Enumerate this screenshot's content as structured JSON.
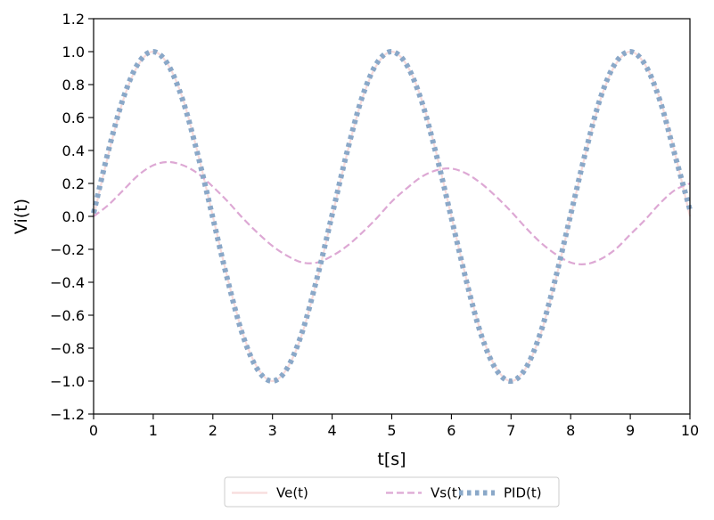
{
  "chart_data": {
    "type": "line",
    "xlabel": "t[s]",
    "ylabel": "Vi(t)",
    "xlim": [
      0,
      10
    ],
    "ylim": [
      -1.2,
      1.2
    ],
    "xticks": [
      "0",
      "1",
      "2",
      "3",
      "4",
      "5",
      "6",
      "7",
      "8",
      "9",
      "10"
    ],
    "yticks": [
      "1.2",
      "1.0",
      "0.8",
      "0.6",
      "0.4",
      "0.2",
      "0.0",
      "−0.2",
      "−0.4",
      "−0.6",
      "−0.8",
      "−1.0",
      "−1.2"
    ],
    "grid": false,
    "legend_position": "bottom-center",
    "x": [
      0,
      0.25,
      0.5,
      0.75,
      1,
      1.25,
      1.5,
      1.75,
      2,
      2.25,
      2.5,
      2.75,
      3,
      3.25,
      3.5,
      3.75,
      4,
      4.25,
      4.5,
      4.75,
      5,
      5.25,
      5.5,
      5.75,
      6,
      6.25,
      6.5,
      6.75,
      7,
      7.25,
      7.5,
      7.75,
      8,
      8.25,
      8.5,
      8.75,
      9,
      9.25,
      9.5,
      9.75,
      10
    ],
    "series": [
      {
        "name": "Ve(t)",
        "color": "#f8dcdc",
        "style": "solid",
        "values": [
          0,
          0.38,
          0.71,
          0.92,
          1.0,
          0.92,
          0.71,
          0.38,
          0,
          -0.38,
          -0.71,
          -0.92,
          -1.0,
          -0.92,
          -0.71,
          -0.38,
          0,
          0.38,
          0.71,
          0.92,
          1.0,
          0.92,
          0.71,
          0.38,
          0,
          -0.38,
          -0.71,
          -0.92,
          -1.0,
          -0.92,
          -0.71,
          -0.38,
          0,
          0.38,
          0.71,
          0.92,
          1.0,
          0.92,
          0.71,
          0.38,
          0
        ]
      },
      {
        "name": "Vs(t)",
        "color": "#dda8d4",
        "style": "dashed",
        "values": [
          0,
          0.07,
          0.16,
          0.25,
          0.31,
          0.33,
          0.31,
          0.26,
          0.18,
          0.09,
          -0.01,
          -0.1,
          -0.18,
          -0.24,
          -0.28,
          -0.28,
          -0.24,
          -0.18,
          -0.1,
          -0.01,
          0.09,
          0.17,
          0.24,
          0.28,
          0.29,
          0.26,
          0.2,
          0.12,
          0.03,
          -0.07,
          -0.16,
          -0.23,
          -0.28,
          -0.29,
          -0.26,
          -0.2,
          -0.11,
          -0.02,
          0.08,
          0.16,
          0.2
        ]
      },
      {
        "name": "PID(t)",
        "color": "#8aa8c8",
        "style": "dotted",
        "values": [
          0.02,
          0.4,
          0.72,
          0.93,
          1.0,
          0.92,
          0.7,
          0.37,
          -0.01,
          -0.39,
          -0.72,
          -0.93,
          -1.0,
          -0.92,
          -0.7,
          -0.37,
          0.01,
          0.39,
          0.72,
          0.93,
          1.0,
          0.92,
          0.7,
          0.37,
          -0.01,
          -0.39,
          -0.72,
          -0.93,
          -1.0,
          -0.92,
          -0.7,
          -0.37,
          0.01,
          0.39,
          0.72,
          0.93,
          1.0,
          0.92,
          0.7,
          0.37,
          0.04
        ]
      }
    ]
  }
}
